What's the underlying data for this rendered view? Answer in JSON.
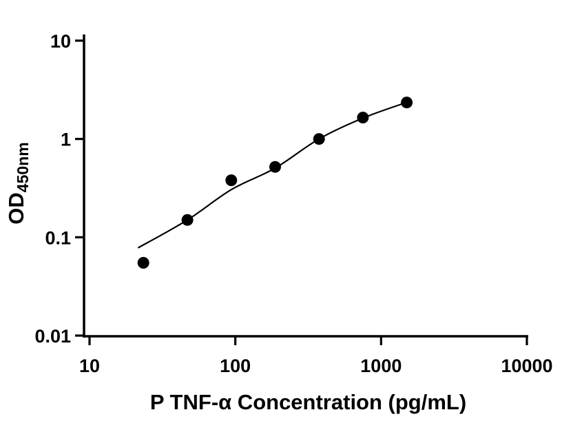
{
  "chart_data": {
    "type": "scatter",
    "title": "",
    "xlabel": "P TNF-α Concentration (pg/mL)",
    "ylabel_main": "OD",
    "ylabel_sub": "450nm",
    "x_scale": "log",
    "y_scale": "log",
    "xlim": [
      10,
      10000
    ],
    "ylim": [
      0.01,
      10
    ],
    "x_ticks": [
      10,
      100,
      1000,
      10000
    ],
    "x_tick_labels": [
      "10",
      "100",
      "1000",
      "10000"
    ],
    "y_ticks": [
      0.01,
      0.1,
      1,
      10
    ],
    "y_tick_labels": [
      "0.01",
      "0.1",
      "1",
      "10"
    ],
    "grid": false,
    "legend": "none",
    "axis_color": "#000000",
    "marker_color": "#000000",
    "line_color": "#000000",
    "series": [
      {
        "name": "standard-points",
        "type": "scatter",
        "x": [
          23.4,
          46.9,
          93.8,
          187.5,
          375,
          750,
          1500
        ],
        "y": [
          0.055,
          0.15,
          0.38,
          0.52,
          1.0,
          1.65,
          2.35
        ]
      },
      {
        "name": "fit-curve",
        "type": "line",
        "x": [
          21.5,
          46.9,
          93.8,
          187.5,
          375,
          750,
          1500
        ],
        "y": [
          0.078,
          0.15,
          0.305,
          0.505,
          1.0,
          1.63,
          2.36
        ]
      }
    ]
  }
}
